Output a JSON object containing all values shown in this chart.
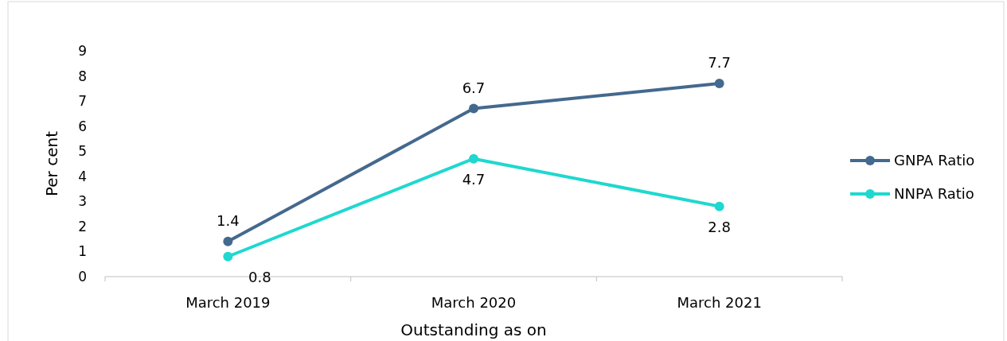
{
  "chart_data": {
    "type": "line",
    "xlabel": "Outstanding as on",
    "ylabel": "Per cent",
    "categories": [
      "March 2019",
      "March 2020",
      "March 2021"
    ],
    "series": [
      {
        "name": "GNPA Ratio",
        "color": "#44698e",
        "values": [
          1.4,
          6.7,
          7.7
        ]
      },
      {
        "name": "NNPA Ratio",
        "color": "#1fd8cf",
        "values": [
          0.8,
          4.7,
          2.8
        ]
      }
    ],
    "ylim": [
      0,
      9
    ],
    "yticks": [
      0,
      1,
      2,
      3,
      4,
      5,
      6,
      7,
      8,
      9
    ],
    "grid": false,
    "legend": "right",
    "marker": "circle",
    "line_style": "solid",
    "data_labels": true
  }
}
